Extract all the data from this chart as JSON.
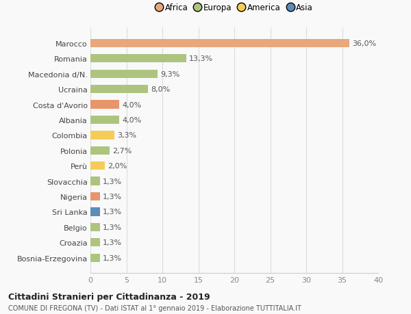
{
  "categories": [
    "Bosnia-Erzegovina",
    "Croazia",
    "Belgio",
    "Sri Lanka",
    "Nigeria",
    "Slovacchia",
    "Perù",
    "Polonia",
    "Colombia",
    "Albania",
    "Costa d'Avorio",
    "Ucraina",
    "Macedonia d/N.",
    "Romania",
    "Marocco"
  ],
  "values": [
    1.3,
    1.3,
    1.3,
    1.3,
    1.3,
    1.3,
    2.0,
    2.7,
    3.3,
    4.0,
    4.0,
    8.0,
    9.3,
    13.3,
    36.0
  ],
  "labels": [
    "1,3%",
    "1,3%",
    "1,3%",
    "1,3%",
    "1,3%",
    "1,3%",
    "2,0%",
    "2,7%",
    "3,3%",
    "4,0%",
    "4,0%",
    "8,0%",
    "9,3%",
    "13,3%",
    "36,0%"
  ],
  "colors": [
    "#adc47f",
    "#adc47f",
    "#adc47f",
    "#5b8db8",
    "#e8956b",
    "#adc47f",
    "#f5cc5a",
    "#adc47f",
    "#f5cc5a",
    "#adc47f",
    "#e8956b",
    "#adc47f",
    "#adc47f",
    "#adc47f",
    "#e8a87c"
  ],
  "legend_labels": [
    "Africa",
    "Europa",
    "America",
    "Asia"
  ],
  "legend_colors": [
    "#e8a87c",
    "#adc47f",
    "#f5cc5a",
    "#5b8db8"
  ],
  "title1": "Cittadini Stranieri per Cittadinanza - 2019",
  "title2": "COMUNE DI FREGONA (TV) - Dati ISTAT al 1° gennaio 2019 - Elaborazione TUTTITALIA.IT",
  "xlim": [
    0,
    40
  ],
  "xticks": [
    0,
    5,
    10,
    15,
    20,
    25,
    30,
    35,
    40
  ],
  "bg_color": "#f9f9f9",
  "bar_height": 0.55,
  "label_fontsize": 8,
  "tick_fontsize": 8,
  "legend_fontsize": 8.5
}
